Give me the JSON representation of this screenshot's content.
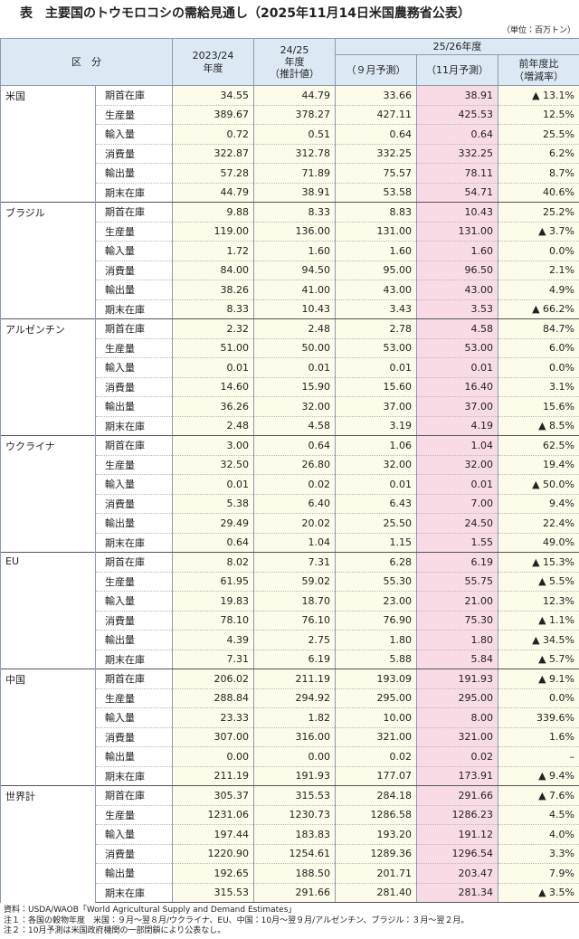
{
  "header": {
    "title": "表　主要国のトウモロコシの需給見通し（2025年11月14日米国農務省公表）",
    "unit": "（単位：百万トン）"
  },
  "table": {
    "columns": {
      "category": "区　分",
      "fy2324": [
        "2023/24",
        "年度"
      ],
      "fy2425": [
        "24/25",
        "年度",
        "（推計値）"
      ],
      "fy2526": "25/26年度",
      "sep": "（９月予測）",
      "nov": "（11月予測）",
      "change": [
        "前年度比",
        "（増減率）"
      ]
    },
    "groups": [
      {
        "region": "米国",
        "rows": [
          {
            "item": "期首在庫",
            "values": [
              "34.55",
              "44.79",
              "33.66",
              "38.91",
              "▲ 13.1%"
            ]
          },
          {
            "item": "生産量",
            "values": [
              "389.67",
              "378.27",
              "427.11",
              "425.53",
              "12.5%"
            ]
          },
          {
            "item": "輸入量",
            "values": [
              "0.72",
              "0.51",
              "0.64",
              "0.64",
              "25.5%"
            ]
          },
          {
            "item": "消費量",
            "values": [
              "322.87",
              "312.78",
              "332.25",
              "332.25",
              "6.2%"
            ]
          },
          {
            "item": "輸出量",
            "values": [
              "57.28",
              "71.89",
              "75.57",
              "78.11",
              "8.7%"
            ]
          },
          {
            "item": "期末在庫",
            "values": [
              "44.79",
              "38.91",
              "53.58",
              "54.71",
              "40.6%"
            ]
          }
        ]
      },
      {
        "region": "ブラジル",
        "rows": [
          {
            "item": "期首在庫",
            "values": [
              "9.88",
              "8.33",
              "8.83",
              "10.43",
              "25.2%"
            ]
          },
          {
            "item": "生産量",
            "values": [
              "119.00",
              "136.00",
              "131.00",
              "131.00",
              "▲ 3.7%"
            ]
          },
          {
            "item": "輸入量",
            "values": [
              "1.72",
              "1.60",
              "1.60",
              "1.60",
              "0.0%"
            ]
          },
          {
            "item": "消費量",
            "values": [
              "84.00",
              "94.50",
              "95.00",
              "96.50",
              "2.1%"
            ]
          },
          {
            "item": "輸出量",
            "values": [
              "38.26",
              "41.00",
              "43.00",
              "43.00",
              "4.9%"
            ]
          },
          {
            "item": "期末在庫",
            "values": [
              "8.33",
              "10.43",
              "3.43",
              "3.53",
              "▲ 66.2%"
            ]
          }
        ]
      },
      {
        "region": "アルゼンチン",
        "rows": [
          {
            "item": "期首在庫",
            "values": [
              "2.32",
              "2.48",
              "2.78",
              "4.58",
              "84.7%"
            ]
          },
          {
            "item": "生産量",
            "values": [
              "51.00",
              "50.00",
              "53.00",
              "53.00",
              "6.0%"
            ]
          },
          {
            "item": "輸入量",
            "values": [
              "0.01",
              "0.01",
              "0.01",
              "0.01",
              "0.0%"
            ]
          },
          {
            "item": "消費量",
            "values": [
              "14.60",
              "15.90",
              "15.60",
              "16.40",
              "3.1%"
            ]
          },
          {
            "item": "輸出量",
            "values": [
              "36.26",
              "32.00",
              "37.00",
              "37.00",
              "15.6%"
            ]
          },
          {
            "item": "期末在庫",
            "values": [
              "2.48",
              "4.58",
              "3.19",
              "4.19",
              "▲ 8.5%"
            ]
          }
        ]
      },
      {
        "region": "ウクライナ",
        "rows": [
          {
            "item": "期首在庫",
            "values": [
              "3.00",
              "0.64",
              "1.06",
              "1.04",
              "62.5%"
            ]
          },
          {
            "item": "生産量",
            "values": [
              "32.50",
              "26.80",
              "32.00",
              "32.00",
              "19.4%"
            ]
          },
          {
            "item": "輸入量",
            "values": [
              "0.01",
              "0.02",
              "0.01",
              "0.01",
              "▲ 50.0%"
            ]
          },
          {
            "item": "消費量",
            "values": [
              "5.38",
              "6.40",
              "6.43",
              "7.00",
              "9.4%"
            ]
          },
          {
            "item": "輸出量",
            "values": [
              "29.49",
              "20.02",
              "25.50",
              "24.50",
              "22.4%"
            ]
          },
          {
            "item": "期末在庫",
            "values": [
              "0.64",
              "1.04",
              "1.15",
              "1.55",
              "49.0%"
            ]
          }
        ]
      },
      {
        "region": "EU",
        "rows": [
          {
            "item": "期首在庫",
            "values": [
              "8.02",
              "7.31",
              "6.28",
              "6.19",
              "▲ 15.3%"
            ]
          },
          {
            "item": "生産量",
            "values": [
              "61.95",
              "59.02",
              "55.30",
              "55.75",
              "▲ 5.5%"
            ]
          },
          {
            "item": "輸入量",
            "values": [
              "19.83",
              "18.70",
              "23.00",
              "21.00",
              "12.3%"
            ]
          },
          {
            "item": "消費量",
            "values": [
              "78.10",
              "76.10",
              "76.90",
              "75.30",
              "▲ 1.1%"
            ]
          },
          {
            "item": "輸出量",
            "values": [
              "4.39",
              "2.75",
              "1.80",
              "1.80",
              "▲ 34.5%"
            ]
          },
          {
            "item": "期末在庫",
            "values": [
              "7.31",
              "6.19",
              "5.88",
              "5.84",
              "▲ 5.7%"
            ]
          }
        ]
      },
      {
        "region": "中国",
        "rows": [
          {
            "item": "期首在庫",
            "values": [
              "206.02",
              "211.19",
              "193.09",
              "191.93",
              "▲ 9.1%"
            ]
          },
          {
            "item": "生産量",
            "values": [
              "288.84",
              "294.92",
              "295.00",
              "295.00",
              "0.0%"
            ]
          },
          {
            "item": "輸入量",
            "values": [
              "23.33",
              "1.82",
              "10.00",
              "8.00",
              "339.6%"
            ]
          },
          {
            "item": "消費量",
            "values": [
              "307.00",
              "316.00",
              "321.00",
              "321.00",
              "1.6%"
            ]
          },
          {
            "item": "輸出量",
            "values": [
              "0.00",
              "0.00",
              "0.02",
              "0.02",
              "–"
            ]
          },
          {
            "item": "期末在庫",
            "values": [
              "211.19",
              "191.93",
              "177.07",
              "173.91",
              "▲ 9.4%"
            ]
          }
        ]
      },
      {
        "region": "世界計",
        "rows": [
          {
            "item": "期首在庫",
            "values": [
              "305.37",
              "315.53",
              "284.18",
              "291.66",
              "▲ 7.6%"
            ]
          },
          {
            "item": "生産量",
            "values": [
              "1231.06",
              "1230.73",
              "1286.58",
              "1286.23",
              "4.5%"
            ]
          },
          {
            "item": "輸入量",
            "values": [
              "197.44",
              "183.83",
              "193.20",
              "191.12",
              "4.0%"
            ]
          },
          {
            "item": "消費量",
            "values": [
              "1220.90",
              "1254.61",
              "1289.36",
              "1296.54",
              "3.3%"
            ]
          },
          {
            "item": "輸出量",
            "values": [
              "192.65",
              "188.50",
              "201.71",
              "203.47",
              "7.9%"
            ]
          },
          {
            "item": "期末在庫",
            "values": [
              "315.53",
              "291.66",
              "281.40",
              "281.34",
              "▲ 3.5%"
            ]
          }
        ]
      }
    ]
  },
  "notes": [
    "資料：USDA/WAOB「World Agricultural Supply and Demand Estimates」",
    "注１：各国の穀物年度　米国：９月～翌８月/ウクライナ、EU、中国：10月～翌９月/アルゼンチン、ブラジル：３月～翌２月。",
    "注２：10月予測は米国政府機関の一部閉鎖により公表なし。"
  ]
}
